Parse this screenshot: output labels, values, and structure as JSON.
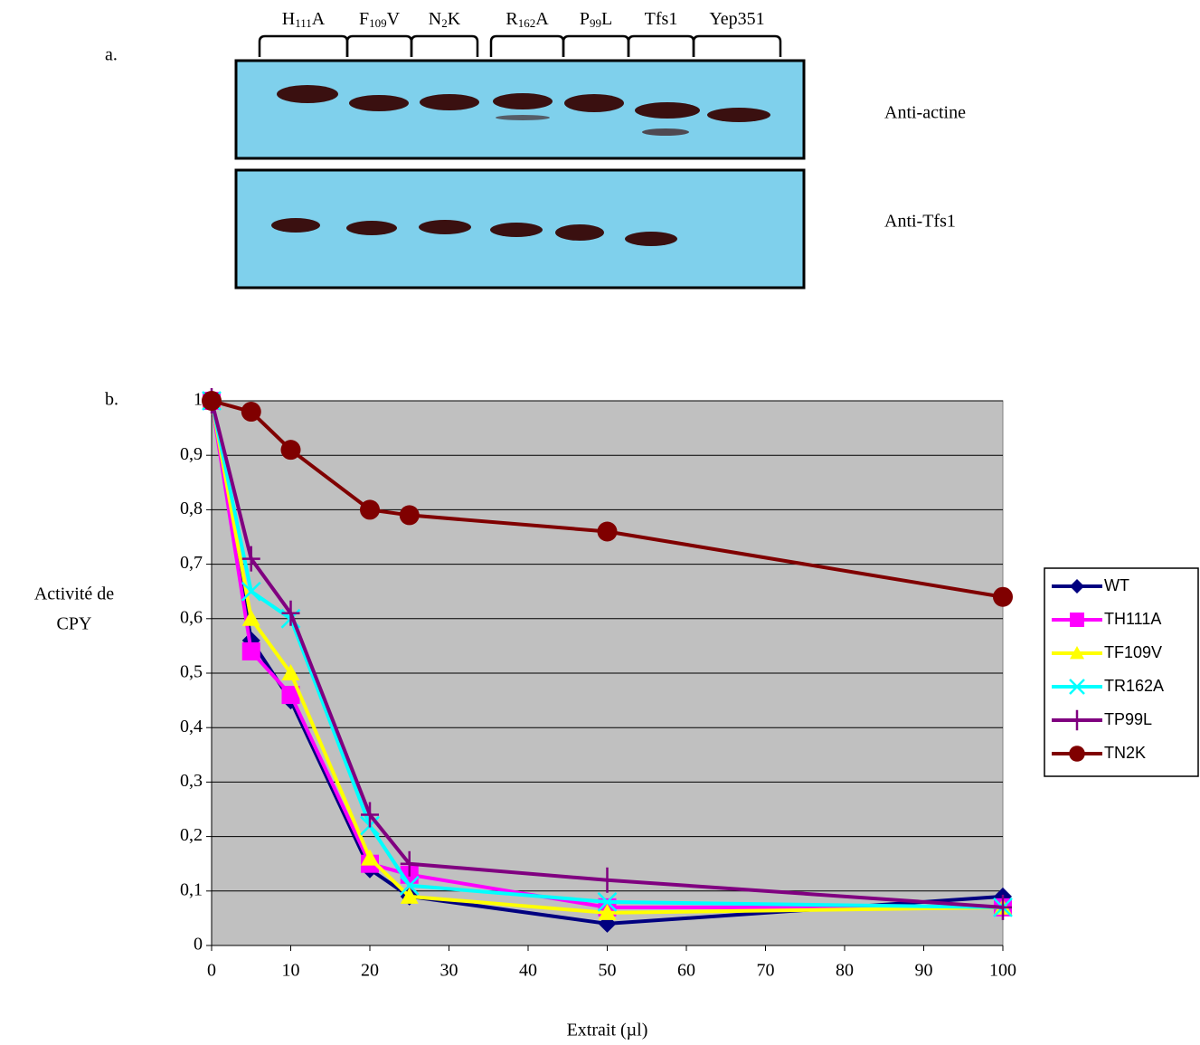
{
  "panel_labels": [
    "a.",
    "b."
  ],
  "blot": {
    "lanes": [
      {
        "main": "H",
        "sub": "111",
        "end": "A"
      },
      {
        "main": "F",
        "sub": "109",
        "end": "V"
      },
      {
        "main": "N",
        "sub": "2",
        "end": "K"
      },
      {
        "main": "R",
        "sub": "162",
        "end": "A"
      },
      {
        "main": "P",
        "sub": "99",
        "end": "L"
      },
      {
        "main": "Tfs1"
      },
      {
        "main": "Yep351"
      }
    ],
    "labels": [
      "Anti-actine",
      "Anti-Tfs1"
    ]
  },
  "chart_data": {
    "type": "line",
    "x": [
      0,
      5,
      10,
      20,
      25,
      50,
      100
    ],
    "series": [
      {
        "name": "WT",
        "color": "#000080",
        "marker": "diamond",
        "values": [
          1,
          0.56,
          0.45,
          0.14,
          0.09,
          0.04,
          0.09
        ]
      },
      {
        "name": "TH111A",
        "color": "#ff00ff",
        "marker": "square",
        "values": [
          1,
          0.54,
          0.46,
          0.15,
          0.13,
          0.07,
          0.07
        ]
      },
      {
        "name": "TF109V",
        "color": "#ffff00",
        "marker": "triangle",
        "values": [
          1,
          0.6,
          0.5,
          0.16,
          0.09,
          0.06,
          0.07
        ]
      },
      {
        "name": "TR162A",
        "color": "#00ffff",
        "marker": "x",
        "values": [
          1,
          0.65,
          0.6,
          0.22,
          0.11,
          0.08,
          0.07
        ]
      },
      {
        "name": "TP99L",
        "color": "#800080",
        "marker": "plus",
        "values": [
          1,
          0.71,
          0.61,
          0.24,
          0.15,
          0.12,
          0.07
        ]
      },
      {
        "name": "TN2K",
        "color": "#800000",
        "marker": "circle",
        "values": [
          1,
          0.98,
          0.91,
          0.8,
          0.79,
          0.76,
          0.64
        ]
      }
    ],
    "xlim": [
      0,
      100
    ],
    "xticks": [
      0,
      10,
      20,
      30,
      40,
      50,
      60,
      70,
      80,
      90,
      100
    ],
    "ylim": [
      0,
      1
    ],
    "yticks": [
      0,
      {
        "value": 0.1,
        "label": "0,1"
      },
      {
        "value": 0.2,
        "label": "0,2"
      },
      {
        "value": 0.3,
        "label": "0,3"
      },
      {
        "value": 0.4,
        "label": "0,4"
      },
      {
        "value": 0.5,
        "label": "0,5"
      },
      {
        "value": 0.6,
        "label": "0,6"
      },
      {
        "value": 0.7,
        "label": "0,7"
      },
      {
        "value": 0.8,
        "label": "0,8"
      },
      {
        "value": 0.9,
        "label": "0,9"
      },
      1
    ],
    "x_label": "Extrait (µl)",
    "y_label": [
      "Activité de",
      "CPY"
    ],
    "grid": true,
    "plot_background": "#c0c0c0",
    "legend": "right"
  }
}
